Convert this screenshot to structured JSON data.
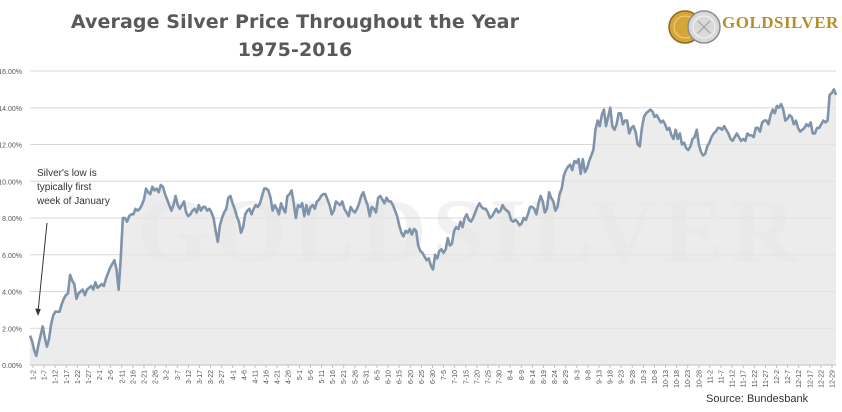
{
  "header": {
    "title_line1": "Average Silver Price Throughout the Year",
    "title_line2": "1975-2016"
  },
  "logo": {
    "text": "GOLDSILVER",
    "watermark": "GOLDSILVER",
    "icon": "gold-silver-coins-icon"
  },
  "source": "Source: Bundesbank",
  "annotation": {
    "text_lines": [
      "Silver's low is",
      "typically first",
      "week of January"
    ]
  },
  "colors": {
    "line": "#7f93ab",
    "fill": "#e5e5e5",
    "grid": "#d9d9d9",
    "title": "#595959",
    "logo_gold": "#b78f2a"
  },
  "chart_data": {
    "type": "area",
    "title": "Average Silver Price Throughout the Year 1975-2016",
    "xlabel": "",
    "ylabel": "",
    "ylim": [
      0,
      16
    ],
    "y_unit": "%",
    "grid": "horizontal",
    "legend": "none",
    "y_ticks": [
      "0.00%",
      "2.00%",
      "4.00%",
      "6.00%",
      "8.00%",
      "10.00%",
      "12.00%",
      "14.00%",
      "16.00%"
    ],
    "x_tick_labels": [
      "1-2",
      "1-7",
      "1-12",
      "1-17",
      "1-22",
      "1-27",
      "2-1",
      "2-6",
      "2-11",
      "2-16",
      "2-21",
      "2-26",
      "3-2",
      "3-7",
      "3-12",
      "3-17",
      "3-22",
      "3-27",
      "4-1",
      "4-6",
      "4-11",
      "4-16",
      "4-21",
      "4-26",
      "5-1",
      "5-6",
      "5-11",
      "5-16",
      "5-21",
      "5-26",
      "5-31",
      "6-5",
      "6-10",
      "6-15",
      "6-20",
      "6-25",
      "6-30",
      "7-5",
      "7-10",
      "7-15",
      "7-20",
      "7-25",
      "7-30",
      "8-4",
      "8-9",
      "8-14",
      "8-19",
      "8-24",
      "8-29",
      "9-3",
      "9-8",
      "9-13",
      "9-18",
      "9-23",
      "9-28",
      "10-3",
      "10-8",
      "10-13",
      "10-18",
      "10-23",
      "10-28",
      "11-2",
      "11-7",
      "11-12",
      "11-17",
      "11-22",
      "11-27",
      "12-2",
      "12-7",
      "12-12",
      "12-17",
      "12-22",
      "12-29"
    ],
    "x_start": "1-2",
    "x_end": "12-29",
    "series": [
      {
        "values": [
          1.6,
          1.3,
          0.8,
          0.5,
          1.1,
          1.6,
          2.1,
          1.5,
          1.0,
          1.4,
          2.2,
          2.7,
          2.9,
          2.9,
          2.9,
          3.3,
          3.6,
          3.8,
          3.9,
          4.9,
          4.6,
          4.4,
          3.6,
          3.9,
          4.0,
          4.1,
          3.8,
          4.1,
          4.2,
          4.3,
          4.1,
          4.5,
          4.2,
          4.3,
          4.4,
          4.3,
          4.7,
          5.0,
          5.3,
          5.5,
          5.7,
          5.2,
          4.1,
          5.8,
          8.0,
          8.0,
          7.8,
          8.1,
          8.2,
          8.2,
          8.5,
          8.4,
          8.5,
          8.7,
          9.0,
          9.6,
          9.4,
          9.3,
          9.7,
          9.5,
          9.6,
          9.4,
          9.8,
          9.7,
          9.3,
          9.0,
          8.7,
          8.4,
          8.7,
          9.2,
          8.7,
          8.5,
          8.7,
          8.9,
          8.3,
          8.1,
          8.2,
          8.4,
          8.5,
          8.3,
          8.7,
          8.4,
          8.6,
          8.6,
          8.4,
          8.5,
          8.3,
          8.0,
          7.3,
          6.7,
          7.6,
          8.0,
          8.3,
          8.5,
          9.1,
          9.2,
          8.8,
          8.5,
          8.1,
          7.8,
          7.2,
          7.5,
          8.2,
          8.4,
          8.5,
          8.2,
          8.5,
          8.7,
          8.6,
          8.8,
          9.2,
          9.6,
          9.6,
          9.5,
          9.1,
          8.4,
          8.7,
          8.5,
          8.2,
          8.8,
          8.5,
          8.3,
          9.2,
          9.3,
          9.5,
          8.8,
          8.0,
          8.7,
          8.6,
          8.8,
          8.1,
          8.7,
          8.2,
          8.6,
          8.7,
          8.5,
          8.9,
          9.0,
          9.2,
          9.3,
          9.3,
          9.0,
          8.7,
          8.2,
          8.4,
          8.9,
          8.8,
          8.7,
          8.9,
          8.5,
          8.3,
          8.1,
          8.6,
          8.4,
          8.3,
          8.5,
          8.8,
          9.2,
          9.4,
          9.0,
          8.7,
          8.1,
          8.6,
          8.5,
          8.3,
          9.1,
          9.2,
          9.0,
          8.8,
          9.1,
          8.9,
          8.9,
          8.7,
          8.4,
          8.1,
          7.6,
          7.2,
          7.0,
          7.3,
          7.2,
          7.4,
          7.1,
          7.4,
          7.3,
          6.5,
          6.2,
          6.1,
          5.9,
          5.7,
          5.8,
          5.4,
          5.2,
          6.0,
          5.8,
          6.2,
          6.3,
          6.1,
          6.3,
          6.9,
          6.5,
          6.6,
          7.3,
          7.5,
          7.4,
          7.8,
          7.5,
          8.0,
          8.2,
          7.9,
          7.8,
          8.0,
          8.3,
          8.6,
          8.8,
          8.6,
          8.5,
          8.5,
          8.3,
          8.0,
          8.1,
          8.3,
          8.5,
          8.3,
          8.4,
          8.7,
          8.5,
          8.4,
          8.3,
          7.9,
          7.8,
          7.9,
          7.8,
          7.6,
          7.7,
          8.0,
          7.9,
          8.2,
          8.6,
          8.6,
          8.5,
          8.2,
          8.8,
          9.2,
          8.9,
          8.3,
          8.5,
          9.4,
          9.1,
          8.9,
          8.4,
          8.6,
          9.3,
          9.6,
          10.3,
          10.6,
          10.8,
          10.9,
          10.6,
          11.1,
          11.0,
          11.2,
          10.4,
          11.2,
          10.5,
          10.7,
          11.1,
          11.4,
          11.7,
          12.8,
          13.3,
          13.0,
          13.6,
          13.9,
          13.0,
          13.5,
          14.0,
          13.0,
          12.8,
          13.1,
          13.7,
          13.7,
          13.1,
          13.3,
          13.3,
          12.6,
          12.9,
          13.0,
          12.7,
          12.0,
          11.9,
          12.9,
          13.5,
          13.7,
          13.8,
          13.9,
          13.8,
          13.5,
          13.6,
          13.4,
          13.2,
          13.3,
          13.1,
          12.8,
          12.9,
          12.5,
          12.3,
          12.8,
          12.3,
          12.6,
          12.0,
          12.1,
          11.8,
          11.7,
          11.9,
          12.3,
          12.4,
          12.8,
          12.0,
          11.6,
          11.4,
          11.5,
          11.9,
          12.1,
          12.4,
          12.6,
          12.7,
          12.9,
          12.9,
          12.8,
          13.0,
          12.8,
          12.6,
          12.3,
          12.2,
          12.4,
          12.6,
          12.4,
          12.2,
          12.3,
          12.2,
          12.6,
          12.5,
          12.5,
          12.4,
          12.9,
          12.9,
          12.7,
          13.2,
          13.3,
          13.3,
          13.1,
          13.6,
          13.9,
          13.7,
          14.1,
          14.0,
          14.2,
          13.9,
          13.3,
          13.4,
          13.6,
          13.5,
          13.1,
          13.3,
          12.9,
          12.7,
          12.8,
          12.9,
          13.1,
          13.0,
          13.2,
          12.6,
          12.6,
          12.9,
          12.9,
          13.1,
          13.3,
          13.2,
          13.3,
          14.7,
          14.8,
          15.0,
          14.7
        ]
      }
    ]
  }
}
